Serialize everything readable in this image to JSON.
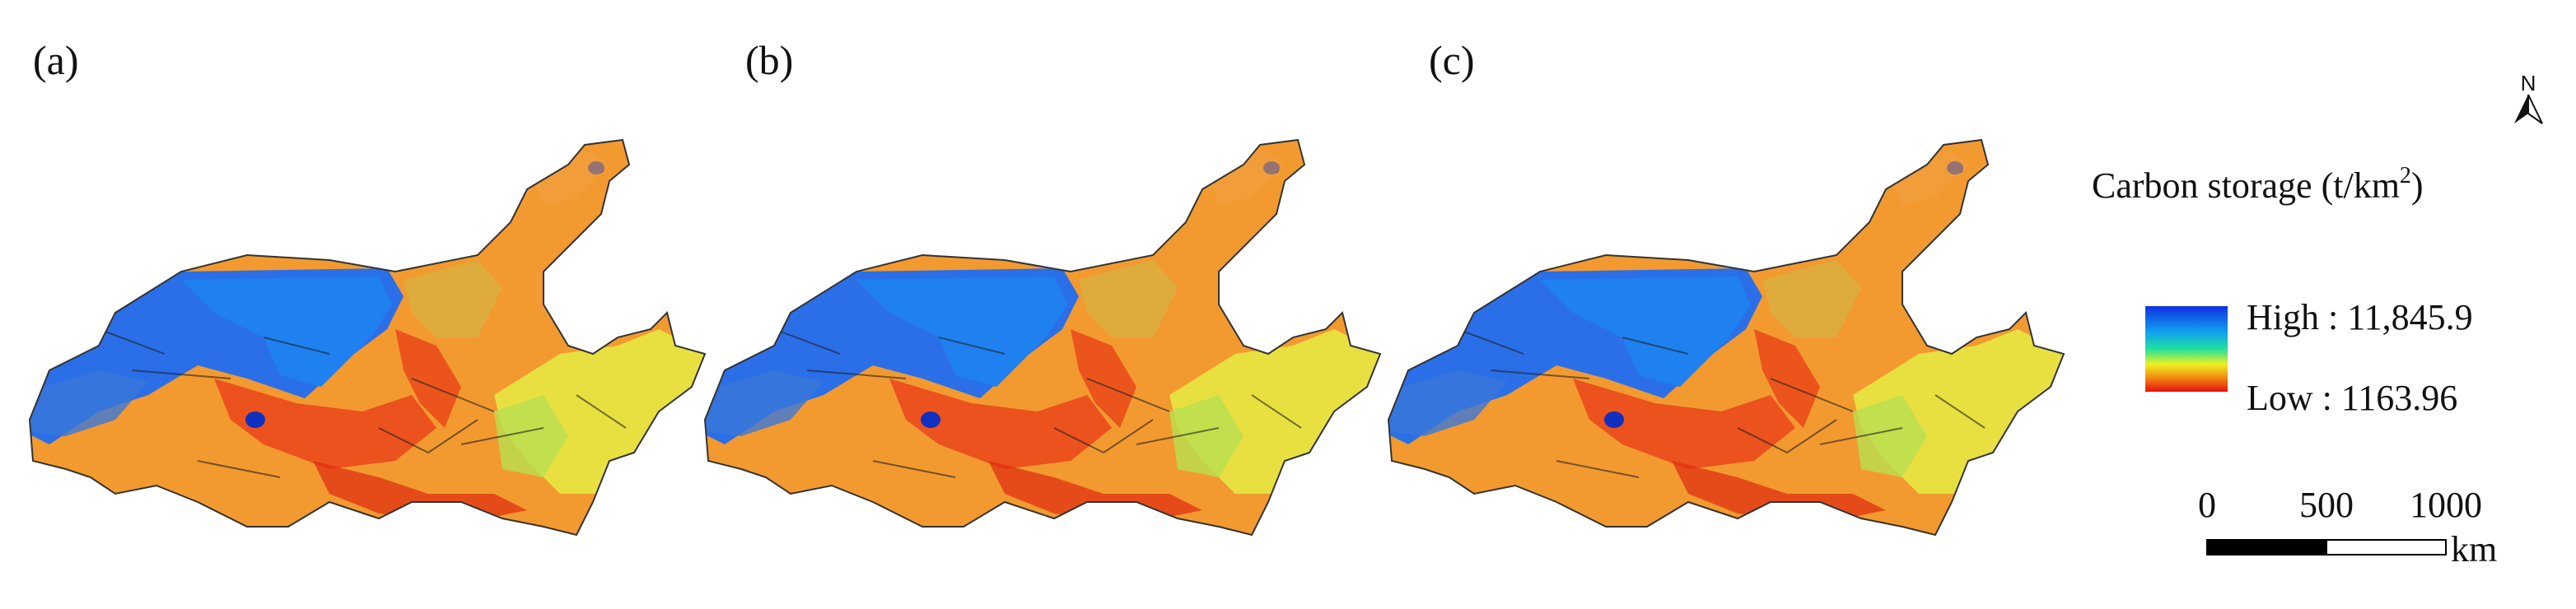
{
  "panels": [
    {
      "label": "(a)"
    },
    {
      "label": "(b)"
    },
    {
      "label": "(c)"
    }
  ],
  "north_arrow": {
    "label": "N"
  },
  "legend": {
    "title": "Carbon storage (t/km",
    "title_superscript": "2",
    "title_end": ")",
    "high_label": "High : 11,845.9",
    "low_label": "Low : 1163.96"
  },
  "scale_bar": {
    "ticks": [
      0,
      500,
      1000
    ],
    "unit": "km"
  }
}
